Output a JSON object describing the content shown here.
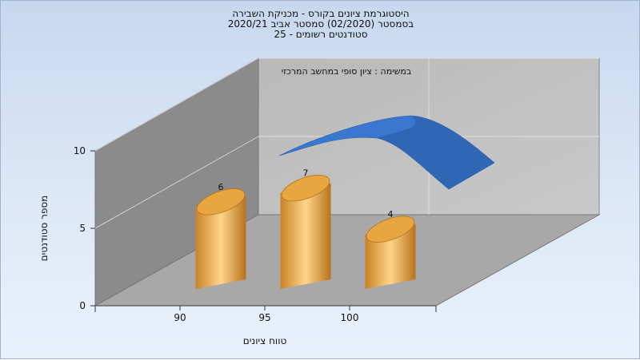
{
  "header": {
    "title_lines": [
      "היסטוגרמת ציונים בקורס - מכניקת השבירה",
      "בסמסטר  (02/2020)  סמסטר אביב 2020/21",
      "סטודנטים רשומים - 25"
    ]
  },
  "chart_data": {
    "type": "bar",
    "subtitle": "במשימה : ציון סופי במחשב המרכזי",
    "xlabel": "טווח ציונים",
    "ylabel": "מספר סטודנטים",
    "categories": [
      "90",
      "95",
      "100"
    ],
    "values": [
      6,
      7,
      4
    ],
    "data_labels": [
      "6",
      "7",
      "4"
    ],
    "ylim": [
      0,
      10
    ],
    "yticks": [
      "0",
      "5",
      "10"
    ],
    "grid": true,
    "bar_color": "#e8a640",
    "curve_color": "#3a78cf",
    "curve": "normal distribution overlay"
  }
}
